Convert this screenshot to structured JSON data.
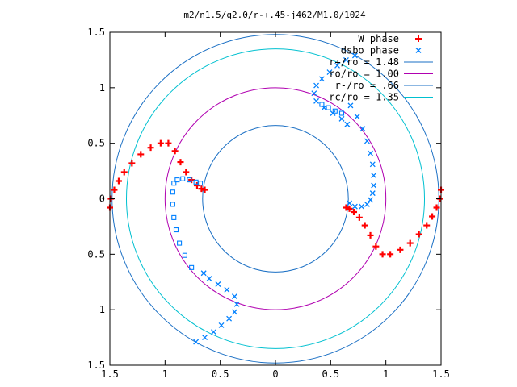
{
  "chart_data": {
    "type": "scatter",
    "title": "m2/n1.5/q2.0/r-+.45-j462/M1.0/1024",
    "xlim": [
      -1.5,
      1.5
    ],
    "ylim": [
      -1.5,
      1.5
    ],
    "x_ticks": [
      -1.5,
      -1,
      -0.5,
      0,
      0.5,
      1,
      1.5
    ],
    "x_tick_labels": [
      "1.5",
      "1",
      "0.5",
      "0",
      "0.5",
      "1",
      "1.5"
    ],
    "y_ticks": [
      1.5,
      1,
      0.5,
      0,
      -0.5,
      -1,
      -1.5
    ],
    "y_tick_labels": [
      "1.5",
      "1",
      "0.5",
      "0",
      "0.5",
      "1",
      "1.5"
    ],
    "legend_position": "top-right",
    "grid": false,
    "series": [
      {
        "name": "W phase",
        "marker": "+",
        "color": "#ff0000",
        "points": [
          [
            -1.5,
            -0.08
          ],
          [
            -1.49,
            0.0
          ],
          [
            -1.46,
            0.08
          ],
          [
            -1.42,
            0.16
          ],
          [
            -1.37,
            0.24
          ],
          [
            -1.3,
            0.32
          ],
          [
            -1.22,
            0.4
          ],
          [
            -1.13,
            0.46
          ],
          [
            -1.04,
            0.5
          ],
          [
            -0.97,
            0.5
          ],
          [
            -0.91,
            0.43
          ],
          [
            -0.86,
            0.33
          ],
          [
            -0.81,
            0.24
          ],
          [
            -0.76,
            0.17
          ],
          [
            -0.71,
            0.12
          ],
          [
            -0.67,
            0.09
          ],
          [
            -0.64,
            0.08
          ],
          [
            1.5,
            0.08
          ],
          [
            1.49,
            0.0
          ],
          [
            1.46,
            -0.08
          ],
          [
            1.42,
            -0.16
          ],
          [
            1.37,
            -0.24
          ],
          [
            1.3,
            -0.32
          ],
          [
            1.22,
            -0.4
          ],
          [
            1.13,
            -0.46
          ],
          [
            1.04,
            -0.5
          ],
          [
            0.97,
            -0.5
          ],
          [
            0.91,
            -0.43
          ],
          [
            0.86,
            -0.33
          ],
          [
            0.81,
            -0.24
          ],
          [
            0.76,
            -0.17
          ],
          [
            0.71,
            -0.12
          ],
          [
            0.67,
            -0.09
          ],
          [
            0.64,
            -0.08
          ]
        ]
      },
      {
        "name": "dsbo phase",
        "marker": "x",
        "color": "#0080ff",
        "points": [
          [
            -0.65,
            -0.67
          ],
          [
            -0.6,
            -0.72
          ],
          [
            -0.52,
            -0.77
          ],
          [
            -0.44,
            -0.82
          ],
          [
            -0.37,
            -0.88
          ],
          [
            -0.35,
            -0.95
          ],
          [
            -0.37,
            -1.02
          ],
          [
            -0.42,
            -1.08
          ],
          [
            -0.49,
            -1.14
          ],
          [
            -0.56,
            -1.2
          ],
          [
            -0.64,
            -1.25
          ],
          [
            -0.72,
            -1.29
          ],
          [
            0.65,
            0.67
          ],
          [
            0.6,
            0.72
          ],
          [
            0.52,
            0.77
          ],
          [
            0.44,
            0.82
          ],
          [
            0.37,
            0.88
          ],
          [
            0.35,
            0.95
          ],
          [
            0.37,
            1.02
          ],
          [
            0.42,
            1.08
          ],
          [
            0.49,
            1.14
          ],
          [
            0.56,
            1.2
          ],
          [
            0.64,
            1.25
          ],
          [
            0.72,
            1.29
          ],
          [
            0.68,
            0.84
          ],
          [
            0.74,
            0.74
          ],
          [
            0.79,
            0.63
          ],
          [
            0.83,
            0.52
          ],
          [
            0.86,
            0.41
          ],
          [
            0.88,
            0.31
          ],
          [
            0.89,
            0.21
          ],
          [
            0.89,
            0.12
          ],
          [
            0.88,
            0.05
          ],
          [
            0.86,
            -0.01
          ],
          [
            0.83,
            -0.05
          ],
          [
            0.78,
            -0.07
          ],
          [
            0.72,
            -0.07
          ],
          [
            0.67,
            -0.04
          ]
        ]
      },
      {
        "name": "dsbo phase squares",
        "marker": "square",
        "color": "#0080ff",
        "points": [
          [
            -0.92,
            -0.17
          ],
          [
            -0.93,
            -0.05
          ],
          [
            -0.93,
            0.06
          ],
          [
            -0.92,
            0.14
          ],
          [
            -0.89,
            0.17
          ],
          [
            -0.84,
            0.18
          ],
          [
            -0.78,
            0.17
          ],
          [
            -0.72,
            0.15
          ],
          [
            -0.68,
            0.14
          ],
          [
            -0.9,
            -0.28
          ],
          [
            -0.87,
            -0.4
          ],
          [
            -0.82,
            -0.51
          ],
          [
            -0.76,
            -0.62
          ],
          [
            0.42,
            0.85
          ],
          [
            0.48,
            0.82
          ],
          [
            0.54,
            0.79
          ],
          [
            0.6,
            0.77
          ]
        ]
      }
    ],
    "circles": [
      {
        "name": "r+/ro = 1.48",
        "radius": 1.48,
        "color": "#1a6fc4"
      },
      {
        "name": "ro/ro = 1.00",
        "radius": 1.0,
        "color": "#b000b0"
      },
      {
        "name": "r-/ro = .66",
        "radius": 0.66,
        "color": "#1a6fc4"
      },
      {
        "name": "rc/ro = 1.35",
        "radius": 1.35,
        "color": "#00c0d0"
      }
    ],
    "legend": [
      "W phase",
      "dsbo phase",
      "r+/ro = 1.48",
      "ro/ro = 1.00",
      "r-/ro = .66",
      "rc/ro = 1.35"
    ]
  }
}
